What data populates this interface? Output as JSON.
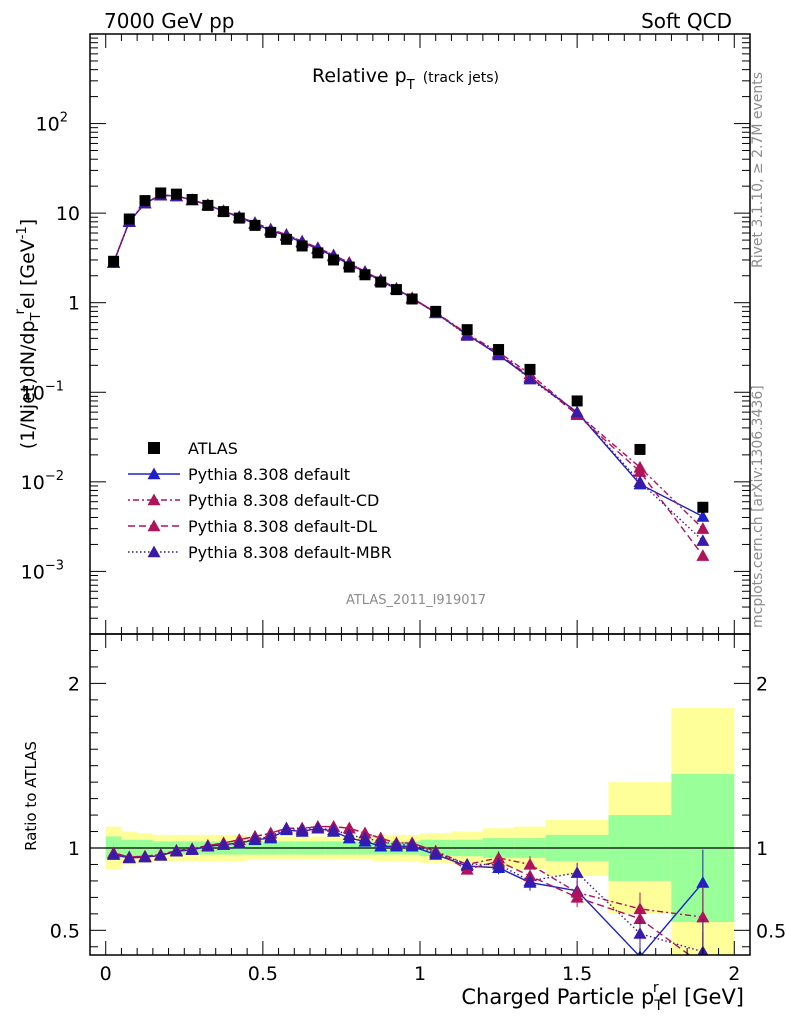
{
  "header": {
    "left": "7000 GeV pp",
    "right": "Soft QCD"
  },
  "side": {
    "rivet": "Rivet 3.1.10, ≥ 2.7M events",
    "mcplots": "mcplots.cern.ch [arXiv:1306.3436]"
  },
  "colors": {
    "atlas": "#000000",
    "default": "#1f1fcc",
    "cd": "#b0135a",
    "dl": "#b0135a",
    "mbr": "#3a1aa8",
    "band_green": "#99ff99",
    "band_yellow": "#ffff99"
  },
  "chart_data": [
    {
      "type": "scatter",
      "title": "Relative p_T (track jets)",
      "title_main": "Relative p",
      "title_sub": "T",
      "title_paren": "(track jets)",
      "ylabel": "(1/Njet)dN/dp_T^rel [GeV^-1]",
      "yscale": "log",
      "xlim": [
        -0.05,
        2.05
      ],
      "ylim": [
        0.0002,
        1000
      ],
      "watermark": "ATLAS_2011_I919017",
      "legend_position": "bottom-left",
      "x": [
        0.025,
        0.075,
        0.125,
        0.175,
        0.225,
        0.275,
        0.325,
        0.375,
        0.425,
        0.475,
        0.525,
        0.575,
        0.625,
        0.675,
        0.725,
        0.775,
        0.825,
        0.875,
        0.925,
        0.975,
        1.05,
        1.15,
        1.25,
        1.35,
        1.5,
        1.7,
        1.9
      ],
      "series": [
        {
          "name": "ATLAS",
          "marker": "square",
          "values": [
            2.9,
            8.6,
            13.8,
            16.8,
            16.3,
            14.2,
            12.2,
            10.4,
            8.8,
            7.3,
            6.1,
            5.1,
            4.3,
            3.6,
            3.0,
            2.5,
            2.05,
            1.7,
            1.4,
            1.1,
            0.8,
            0.5,
            0.3,
            0.18,
            0.08,
            0.023,
            0.0052
          ]
        },
        {
          "name": "Pythia 8.308 default",
          "marker": "triangle",
          "values": [
            2.8,
            8.0,
            12.9,
            15.8,
            15.5,
            14.0,
            12.3,
            10.5,
            9.0,
            7.6,
            6.4,
            5.6,
            4.7,
            4.0,
            3.3,
            2.7,
            2.2,
            1.75,
            1.42,
            1.12,
            0.77,
            0.44,
            0.26,
            0.145,
            0.06,
            0.0094,
            0.0041
          ]
        },
        {
          "name": "Pythia 8.308 default-CD",
          "marker": "triangle",
          "values": [
            2.82,
            8.1,
            13.0,
            15.9,
            15.6,
            14.1,
            12.4,
            10.6,
            9.1,
            7.8,
            6.6,
            5.75,
            4.85,
            4.1,
            3.4,
            2.8,
            2.22,
            1.8,
            1.44,
            1.13,
            0.78,
            0.45,
            0.28,
            0.16,
            0.058,
            0.0145,
            0.003
          ]
        },
        {
          "name": "Pythia 8.308 default-DL",
          "marker": "triangle",
          "values": [
            2.82,
            8.1,
            13.0,
            15.9,
            15.6,
            14.1,
            12.4,
            10.6,
            9.1,
            7.8,
            6.6,
            5.75,
            4.85,
            4.1,
            3.4,
            2.8,
            2.22,
            1.8,
            1.44,
            1.13,
            0.78,
            0.44,
            0.27,
            0.15,
            0.056,
            0.013,
            0.0015
          ]
        },
        {
          "name": "Pythia 8.308 default-MBR",
          "marker": "triangle",
          "values": [
            2.8,
            8.0,
            12.9,
            15.8,
            15.5,
            14.0,
            12.3,
            10.5,
            9.0,
            7.7,
            6.5,
            5.7,
            4.8,
            4.05,
            3.35,
            2.72,
            2.2,
            1.78,
            1.43,
            1.12,
            0.77,
            0.43,
            0.27,
            0.14,
            0.06,
            0.01,
            0.0022
          ]
        }
      ]
    },
    {
      "type": "scatter",
      "xlabel": "Charged Particle p_T^rel [GeV]",
      "xlabel_main": "Charged Particle p",
      "xlabel_sub": "T",
      "xlabel_sup": "r",
      "xlabel_tail": "el [GeV]",
      "ylabel": "Ratio to ATLAS",
      "xlim": [
        -0.05,
        2.05
      ],
      "ylim": [
        0.35,
        2.3
      ],
      "x_ticks": [
        "0",
        "0.5",
        "1",
        "1.5",
        "2"
      ],
      "y_ticks": [
        "0.5",
        "1",
        "2"
      ],
      "bands": {
        "edges": [
          0,
          0.05,
          0.1,
          0.15,
          0.2,
          0.25,
          0.3,
          0.35,
          0.4,
          0.45,
          0.5,
          0.55,
          0.6,
          0.65,
          0.7,
          0.75,
          0.8,
          0.85,
          0.9,
          0.95,
          1.0,
          1.1,
          1.2,
          1.3,
          1.4,
          1.6,
          1.8,
          2.0
        ],
        "green_halfwidth": [
          0.07,
          0.05,
          0.05,
          0.04,
          0.04,
          0.04,
          0.04,
          0.04,
          0.04,
          0.04,
          0.04,
          0.04,
          0.04,
          0.04,
          0.04,
          0.04,
          0.04,
          0.04,
          0.04,
          0.04,
          0.05,
          0.05,
          0.06,
          0.06,
          0.08,
          0.2,
          0.45
        ],
        "yellow_halfwidth": [
          0.13,
          0.1,
          0.09,
          0.08,
          0.08,
          0.08,
          0.08,
          0.08,
          0.08,
          0.07,
          0.07,
          0.07,
          0.07,
          0.07,
          0.07,
          0.07,
          0.07,
          0.08,
          0.08,
          0.08,
          0.09,
          0.1,
          0.12,
          0.13,
          0.17,
          0.4,
          0.85
        ]
      },
      "series": [
        {
          "name": "Pythia 8.308 default",
          "values": [
            0.96,
            0.94,
            0.945,
            0.955,
            0.98,
            0.99,
            1.01,
            1.02,
            1.03,
            1.05,
            1.06,
            1.11,
            1.1,
            1.12,
            1.1,
            1.06,
            1.04,
            1.01,
            1.01,
            1.01,
            0.96,
            0.89,
            0.88,
            0.79,
            0.74,
            0.34,
            0.79
          ],
          "errors": [
            0.01,
            0.01,
            0.01,
            0.01,
            0.01,
            0.01,
            0.01,
            0.01,
            0.01,
            0.01,
            0.01,
            0.01,
            0.01,
            0.01,
            0.01,
            0.01,
            0.01,
            0.01,
            0.01,
            0.02,
            0.02,
            0.03,
            0.04,
            0.05,
            0.06,
            0.1,
            0.2
          ]
        },
        {
          "name": "Pythia 8.308 default-CD",
          "values": [
            0.97,
            0.945,
            0.95,
            0.96,
            0.985,
            0.995,
            1.015,
            1.03,
            1.05,
            1.07,
            1.09,
            1.12,
            1.12,
            1.13,
            1.13,
            1.12,
            1.09,
            1.06,
            1.03,
            1.03,
            0.98,
            0.9,
            0.94,
            0.9,
            0.73,
            0.63,
            0.58
          ],
          "errors": [
            0.01,
            0.01,
            0.01,
            0.01,
            0.01,
            0.01,
            0.01,
            0.01,
            0.01,
            0.01,
            0.01,
            0.01,
            0.01,
            0.01,
            0.01,
            0.01,
            0.01,
            0.01,
            0.01,
            0.02,
            0.02,
            0.03,
            0.04,
            0.05,
            0.06,
            0.1,
            0.2
          ]
        },
        {
          "name": "Pythia 8.308 default-DL",
          "values": [
            0.97,
            0.945,
            0.95,
            0.96,
            0.985,
            0.995,
            1.015,
            1.03,
            1.05,
            1.07,
            1.09,
            1.12,
            1.12,
            1.13,
            1.13,
            1.12,
            1.09,
            1.06,
            1.03,
            1.03,
            0.98,
            0.87,
            0.92,
            0.83,
            0.7,
            0.57,
            0.29
          ],
          "errors": [
            0.01,
            0.01,
            0.01,
            0.01,
            0.01,
            0.01,
            0.01,
            0.01,
            0.01,
            0.01,
            0.01,
            0.01,
            0.01,
            0.01,
            0.01,
            0.01,
            0.01,
            0.01,
            0.01,
            0.02,
            0.02,
            0.03,
            0.04,
            0.05,
            0.06,
            0.1,
            0.2
          ]
        },
        {
          "name": "Pythia 8.308 default-MBR",
          "values": [
            0.96,
            0.94,
            0.945,
            0.955,
            0.98,
            0.99,
            1.01,
            1.02,
            1.03,
            1.055,
            1.07,
            1.12,
            1.11,
            1.12,
            1.11,
            1.08,
            1.06,
            1.04,
            1.02,
            1.02,
            0.97,
            0.9,
            0.9,
            0.8,
            0.85,
            0.48,
            0.37
          ],
          "errors": [
            0.01,
            0.01,
            0.01,
            0.01,
            0.01,
            0.01,
            0.01,
            0.01,
            0.01,
            0.01,
            0.01,
            0.01,
            0.01,
            0.01,
            0.01,
            0.01,
            0.01,
            0.01,
            0.01,
            0.02,
            0.02,
            0.03,
            0.04,
            0.05,
            0.06,
            0.1,
            0.2
          ]
        }
      ]
    }
  ]
}
